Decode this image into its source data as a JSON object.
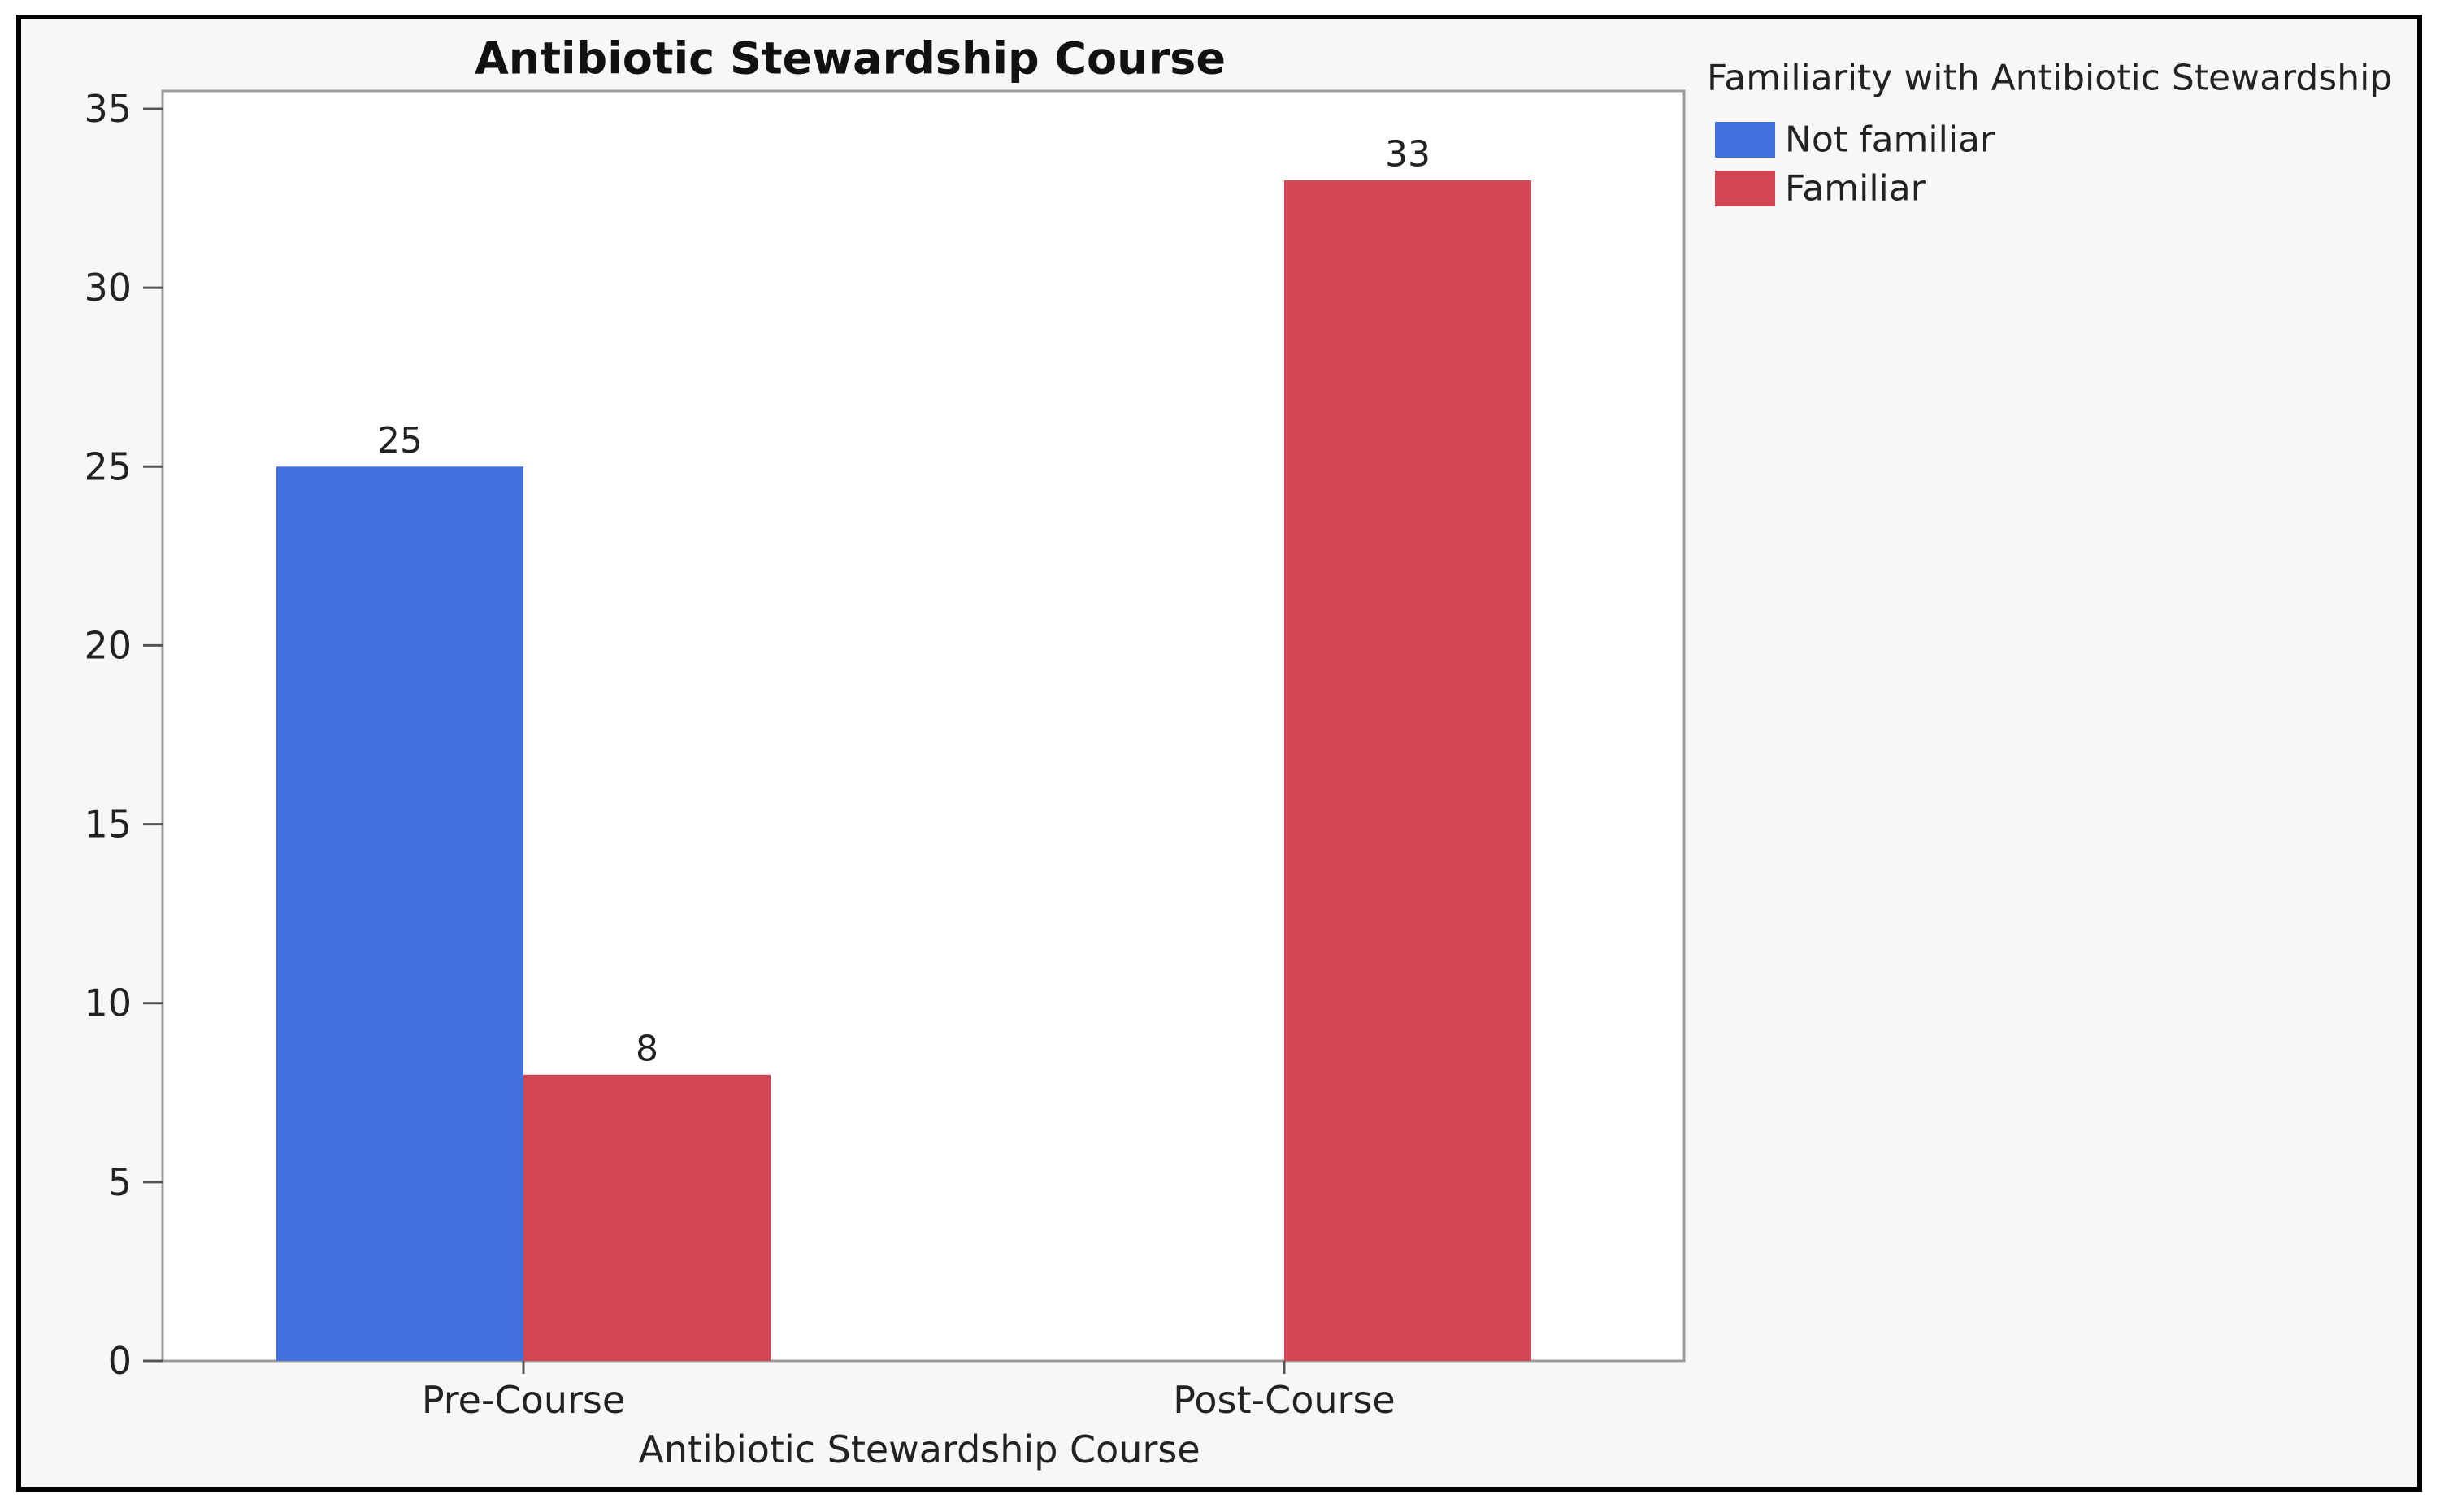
{
  "chart_data": {
    "type": "bar",
    "title": "Antibiotic Stewardship Course",
    "xlabel": "Antibiotic Stewardship Course",
    "ylabel": "",
    "categories": [
      "Pre-Course",
      "Post-Course"
    ],
    "series": [
      {
        "name": "Not familiar",
        "values": [
          25,
          0
        ],
        "color": "#4270dc"
      },
      {
        "name": "Familiar",
        "values": [
          8,
          33
        ],
        "color": "#d24653"
      }
    ],
    "data_labels": [
      {
        "category": "Pre-Course",
        "series": "Not familiar",
        "text": "25"
      },
      {
        "category": "Pre-Course",
        "series": "Familiar",
        "text": "8"
      },
      {
        "category": "Post-Course",
        "series": "Familiar",
        "text": "33"
      }
    ],
    "ylim": [
      0,
      35
    ],
    "yticks": [
      0,
      5,
      10,
      15,
      20,
      25,
      30,
      35
    ],
    "legend": {
      "title": "Familiarity with Antibiotic Stewardship",
      "placement": "right",
      "entries": [
        "Not familiar",
        "Familiar"
      ]
    }
  }
}
